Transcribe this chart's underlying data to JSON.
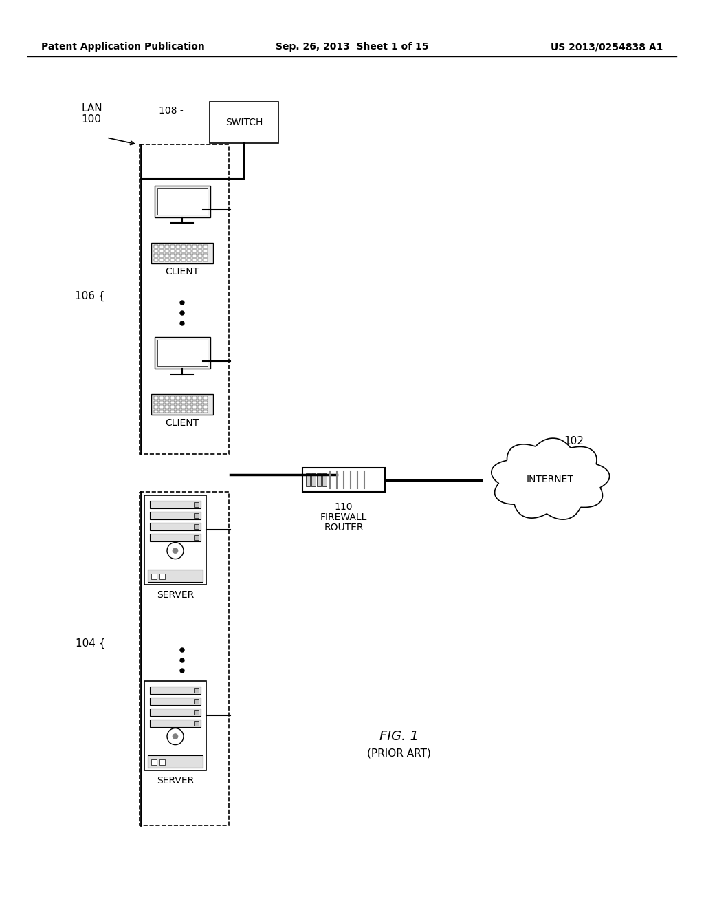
{
  "bg_color": "#ffffff",
  "header_left": "Patent Application Publication",
  "header_mid": "Sep. 26, 2013  Sheet 1 of 15",
  "header_right": "US 2013/0254838 A1",
  "lan_label": "LAN",
  "lan_num": "100",
  "switch_label": "SWITCH",
  "switch_num": "108",
  "client_label": "CLIENT",
  "client_num106": "106",
  "server_label": "SERVER",
  "server_num104": "104",
  "firewall_label": "FIREWALL\nROUTER",
  "firewall_num": "110",
  "internet_label": "INTERNET",
  "internet_num": "102",
  "fig_label": "FIG. 1",
  "fig_sub": "(PRIOR ART)"
}
